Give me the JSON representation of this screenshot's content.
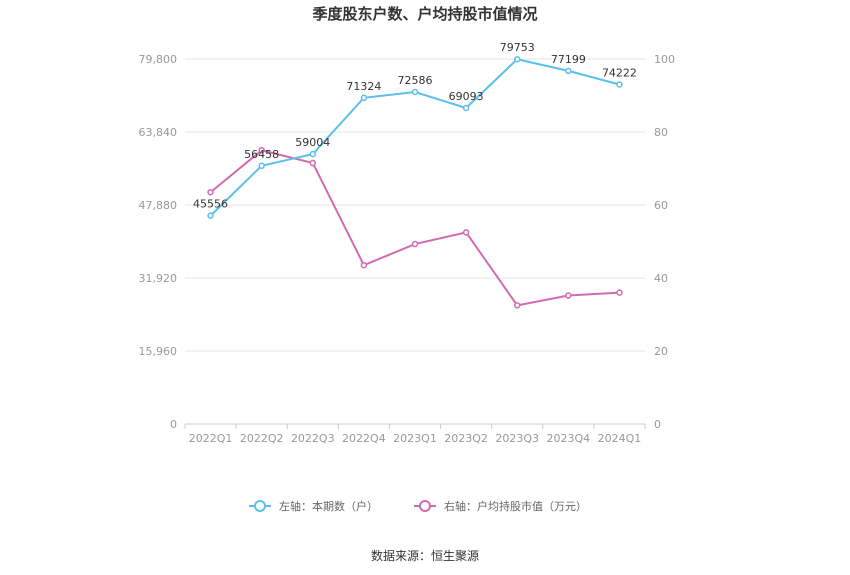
{
  "chart_data": {
    "type": "line",
    "title": "季度股东户数、户均持股市值情况",
    "categories": [
      "2022Q1",
      "2022Q2",
      "2022Q3",
      "2022Q4",
      "2023Q1",
      "2023Q2",
      "2023Q3",
      "2023Q4",
      "2024Q1"
    ],
    "series": [
      {
        "name": "左轴：本期数（户）",
        "axis": "left",
        "color": "#5bc0eb",
        "values": [
          45556,
          56458,
          59004,
          71324,
          72586,
          69093,
          79753,
          77199,
          74222
        ],
        "labels": [
          "45556",
          "56458",
          "59004",
          "71324",
          "72586",
          "69093",
          "79753",
          "77199",
          "74222"
        ]
      },
      {
        "name": "右轴：户均持股市值（万元）",
        "axis": "right",
        "color": "#d36bb0",
        "values": [
          63.5,
          75.0,
          71.5,
          43.5,
          49.3,
          52.5,
          32.5,
          35.2,
          36.0
        ]
      }
    ],
    "left_axis": {
      "min": 0,
      "max": 79800,
      "ticks": [
        0,
        15960,
        31920,
        47880,
        63840,
        79800
      ],
      "tick_labels": [
        "0",
        "15,960",
        "31,920",
        "47,880",
        "63,840",
        "79,800"
      ]
    },
    "right_axis": {
      "min": 0,
      "max": 100,
      "ticks": [
        0,
        20,
        40,
        60,
        80,
        100
      ],
      "tick_labels": [
        "0",
        "20",
        "40",
        "60",
        "80",
        "100"
      ]
    },
    "grid": true,
    "legend_position": "bottom"
  },
  "source": "数据来源：恒生聚源"
}
